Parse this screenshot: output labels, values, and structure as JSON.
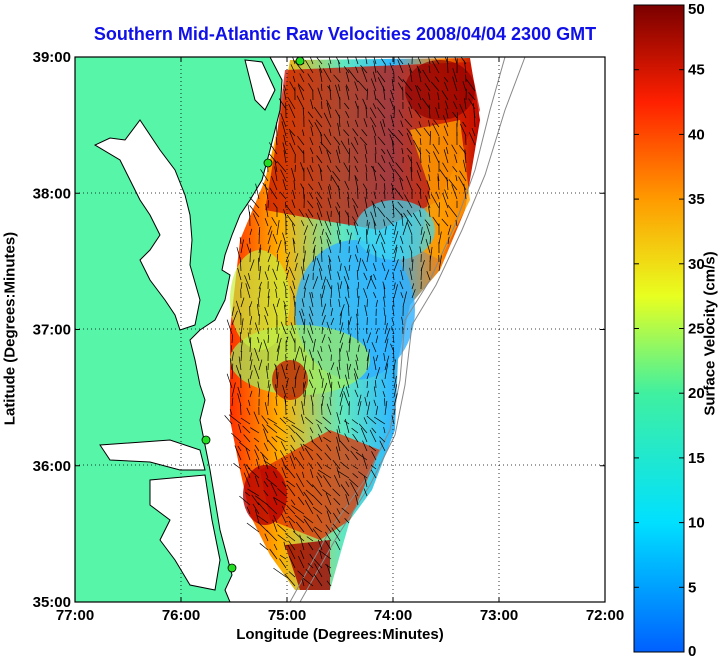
{
  "title": "Southern Mid-Atlantic Raw Velocities 2008/04/04 2300 GMT",
  "colors": {
    "land": "#57f5a8",
    "title": "#1010e8",
    "station": "#22dd22"
  },
  "chart_data": {
    "type": "heatmap",
    "xlabel": "Longitude (Degrees:Minutes)",
    "ylabel": "Latitude (Degrees:Minutes)",
    "x_range": [
      -77,
      -72
    ],
    "y_range": [
      35,
      39
    ],
    "x_ticks": [
      "77:00",
      "76:00",
      "75:00",
      "74:00",
      "73:00",
      "72:00"
    ],
    "y_ticks": [
      "39:00",
      "38:00",
      "37:00",
      "36:00",
      "35:00"
    ],
    "grid": true,
    "colorbar": {
      "label": "Surface Velocity (cm/s)",
      "range": [
        0,
        50
      ],
      "ticks": [
        "50",
        "45",
        "40",
        "35",
        "30",
        "25",
        "20",
        "15",
        "10",
        "5",
        "0"
      ]
    }
  }
}
